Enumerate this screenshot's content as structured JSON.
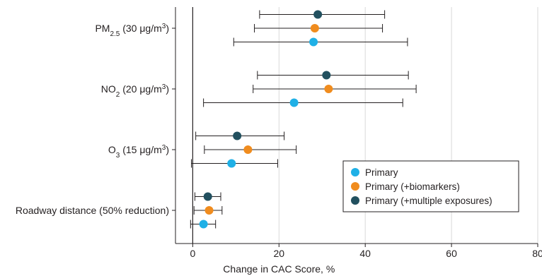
{
  "chart_data": {
    "type": "forest",
    "xlabel": "Change in CAC Score, %",
    "xlim": [
      -4,
      80
    ],
    "xticks": [
      "0",
      "20",
      "40",
      "60",
      "80"
    ],
    "xtick_values": [
      0,
      20,
      40,
      60,
      80
    ],
    "grid": "vertical",
    "legend_position": "lower-right",
    "categories": [
      {
        "label_html": "PM<tspan baseline-shift=\"sub\" font-size=\"10\">2.5</tspan> (30 μg/m<tspan baseline-shift=\"super\" font-size=\"10\">3</tspan>)",
        "label_text": "PM2.5 (30 μg/m3)"
      },
      {
        "label_html": "NO<tspan baseline-shift=\"sub\" font-size=\"10\">2</tspan> (20 μg/m<tspan baseline-shift=\"super\" font-size=\"10\">3</tspan>)",
        "label_text": "NO2 (20 μg/m3)"
      },
      {
        "label_html": "O<tspan baseline-shift=\"sub\" font-size=\"10\">3</tspan> (15 μg/m<tspan baseline-shift=\"super\" font-size=\"10\">3</tspan>)",
        "label_text": "O3 (15 μg/m3)"
      },
      {
        "label_html": "Roadway distance (50% reduction)",
        "label_text": "Roadway distance (50% reduction)"
      }
    ],
    "series": [
      {
        "name": "Primary (+multiple exposures)",
        "color": "#22505f",
        "points": [
          {
            "estimate": 29.0,
            "lower": 15.5,
            "upper": 44.5
          },
          {
            "estimate": 31.0,
            "lower": 15.0,
            "upper": 50.0
          },
          {
            "estimate": 10.3,
            "lower": 0.7,
            "upper": 21.2
          },
          {
            "estimate": 3.5,
            "lower": 0.5,
            "upper": 6.5
          }
        ]
      },
      {
        "name": "Primary (+biomarkers)",
        "color": "#f08c1e",
        "points": [
          {
            "estimate": 28.3,
            "lower": 14.3,
            "upper": 44.0
          },
          {
            "estimate": 31.5,
            "lower": 14.0,
            "upper": 51.8
          },
          {
            "estimate": 12.8,
            "lower": 2.7,
            "upper": 24.0
          },
          {
            "estimate": 3.8,
            "lower": 0.3,
            "upper": 6.8
          }
        ]
      },
      {
        "name": "Primary",
        "color": "#1fb0e6",
        "points": [
          {
            "estimate": 28.0,
            "lower": 9.5,
            "upper": 49.8
          },
          {
            "estimate": 23.5,
            "lower": 2.5,
            "upper": 48.7
          },
          {
            "estimate": 9.0,
            "lower": -0.3,
            "upper": 19.7
          },
          {
            "estimate": 2.5,
            "lower": -0.5,
            "upper": 5.3
          }
        ]
      }
    ],
    "legend": [
      {
        "name": "Primary",
        "color": "#1fb0e6"
      },
      {
        "name": "Primary (+biomarkers)",
        "color": "#f08c1e"
      },
      {
        "name": "Primary (+multiple exposures)",
        "color": "#22505f"
      }
    ]
  }
}
